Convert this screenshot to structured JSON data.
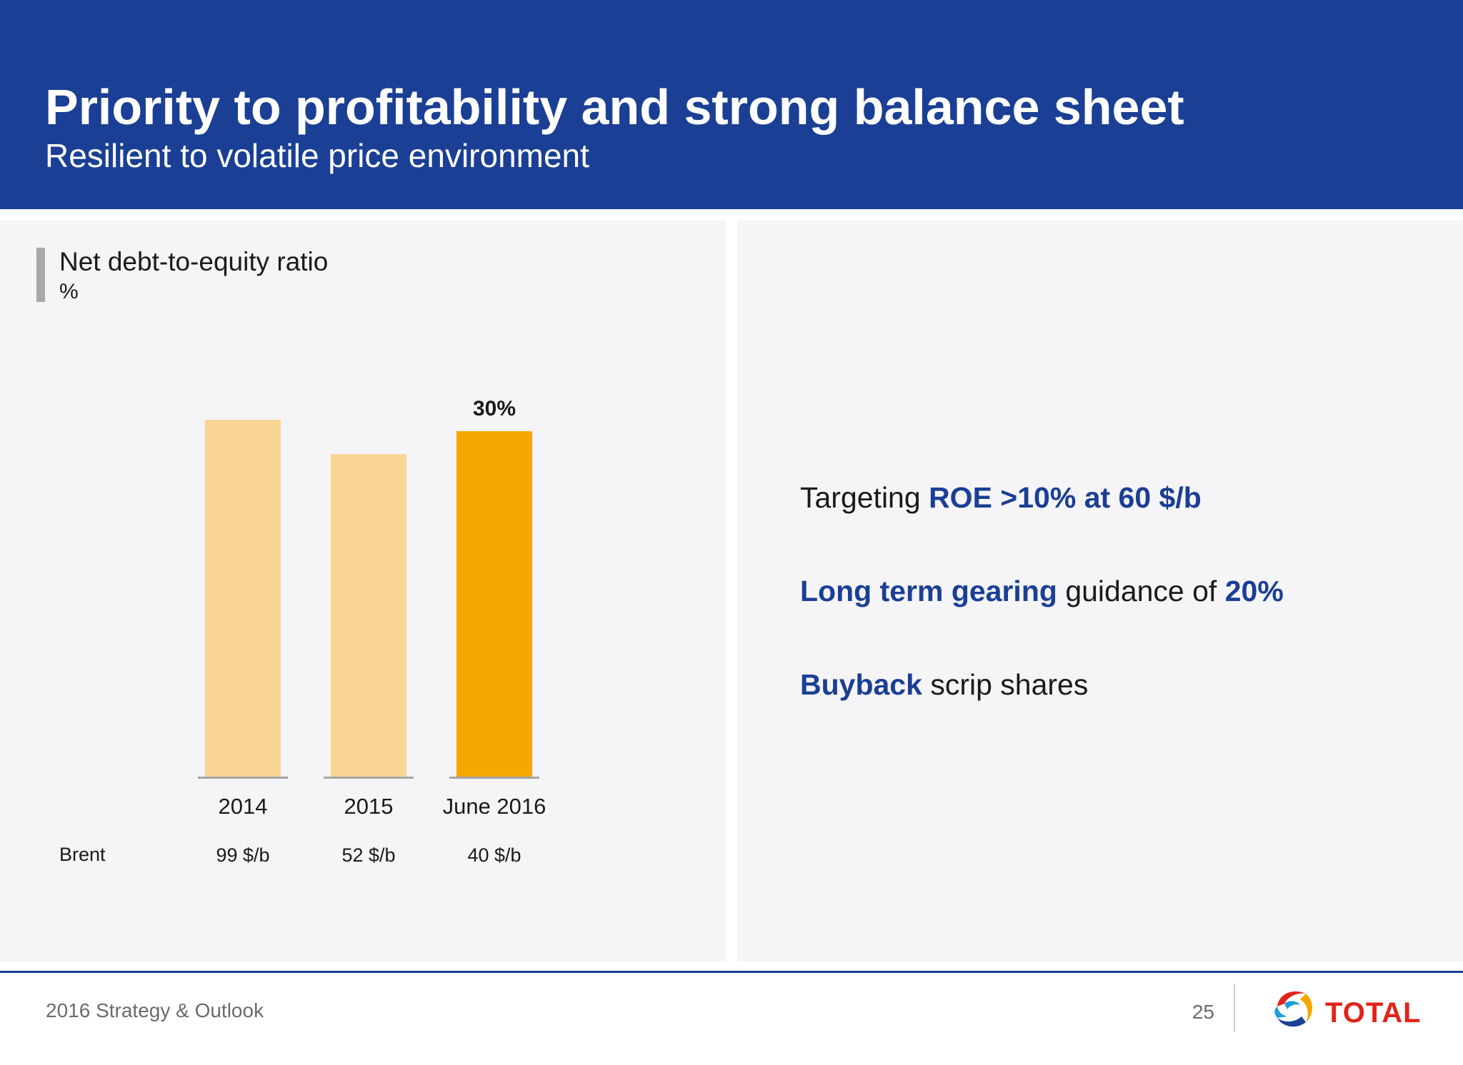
{
  "header": {
    "title": "Priority to profitability and strong balance sheet",
    "subtitle": "Resilient to volatile price environment"
  },
  "chart_panel": {
    "title": "Net debt-to-equity ratio",
    "unit": "%",
    "brent_label": "Brent",
    "brent_values": [
      "99 $/b",
      "52 $/b",
      "40 $/b"
    ]
  },
  "chart_data": {
    "type": "bar",
    "title": "Net debt-to-equity ratio",
    "ylabel": "%",
    "categories": [
      "2014",
      "2015",
      "June 2016"
    ],
    "values": [
      31,
      28,
      30
    ],
    "data_labels": [
      "",
      "",
      "30%"
    ],
    "ylim": [
      0,
      31
    ],
    "grid": false,
    "legend": "none",
    "colors": [
      "#f9d594",
      "#f9d594",
      "#f5a700"
    ],
    "baseline_color": "#a6a6a6"
  },
  "bullets": [
    {
      "parts": [
        {
          "text": "Targeting ",
          "hl": false
        },
        {
          "text": "ROE >10% at 60 $/b",
          "hl": true
        }
      ]
    },
    {
      "parts": [
        {
          "text": "Long term gearing",
          "hl": true
        },
        {
          "text": " guidance of ",
          "hl": false
        },
        {
          "text": "20%",
          "hl": true
        }
      ]
    },
    {
      "parts": [
        {
          "text": "Buyback",
          "hl": true
        },
        {
          "text": " scrip shares",
          "hl": false
        }
      ]
    }
  ],
  "footer": {
    "text": "2016 Strategy & Outlook",
    "page": "25",
    "logo_text": "TOTAL"
  },
  "colors": {
    "brand_blue": "#1a3f94",
    "panel_bg": "#f5f4f7",
    "logo_red": "#e2231a"
  }
}
